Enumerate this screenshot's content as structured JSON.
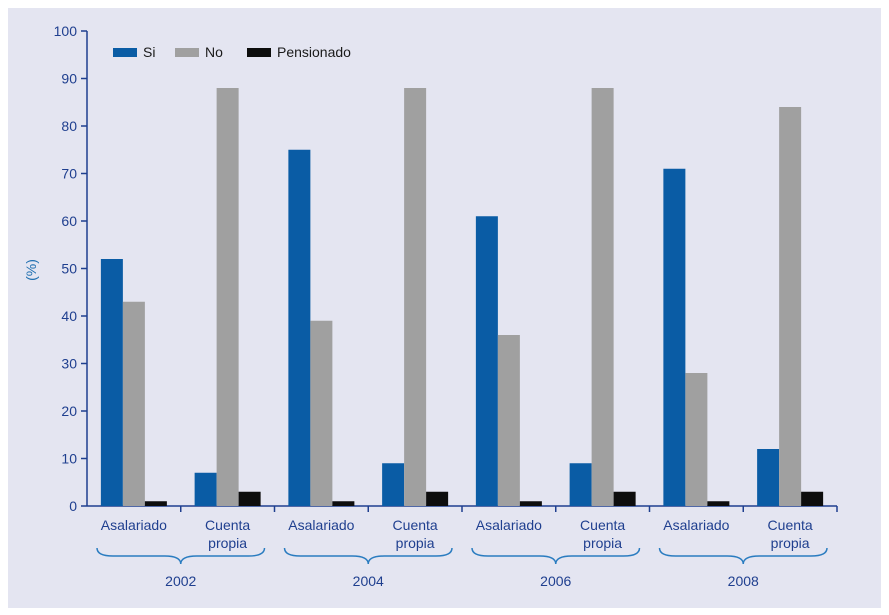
{
  "chart_data": {
    "type": "bar",
    "ylabel": "(%)",
    "ylim": [
      0,
      100
    ],
    "yticks": [
      0,
      10,
      20,
      30,
      40,
      50,
      60,
      70,
      80,
      90,
      100
    ],
    "grid": false,
    "legend_position": "top-left",
    "groups": [
      {
        "label": "2002",
        "categories": [
          {
            "label": "Asalariado"
          },
          {
            "label": "Cuenta propia",
            "lines": [
              "Cuenta",
              "propia"
            ]
          }
        ]
      },
      {
        "label": "2004",
        "categories": [
          {
            "label": "Asalariado"
          },
          {
            "label": "Cuenta propia",
            "lines": [
              "Cuenta",
              "propia"
            ]
          }
        ]
      },
      {
        "label": "2006",
        "categories": [
          {
            "label": "Asalariado"
          },
          {
            "label": "Cuenta propia",
            "lines": [
              "Cuenta",
              "propia"
            ]
          }
        ]
      },
      {
        "label": "2008",
        "categories": [
          {
            "label": "Asalariado"
          },
          {
            "label": "Cuenta propia",
            "lines": [
              "Cuenta",
              "propia"
            ]
          }
        ]
      }
    ],
    "categories": [
      "2002 Asalariado",
      "2002 Cuenta propia",
      "2004 Asalariado",
      "2004 Cuenta propia",
      "2006 Asalariado",
      "2006 Cuenta propia",
      "2008 Asalariado",
      "2008 Cuenta propia"
    ],
    "series": [
      {
        "name": "Si",
        "color": "#0a5ca5",
        "values": [
          52,
          7,
          75,
          9,
          61,
          9,
          71,
          12
        ]
      },
      {
        "name": "No",
        "color": "#a0a0a0",
        "values": [
          43,
          88,
          39,
          88,
          36,
          88,
          28,
          84
        ]
      },
      {
        "name": "Pensionado",
        "color": "#0d0d0d",
        "values": [
          1,
          3,
          1,
          3,
          1,
          3,
          1,
          3
        ]
      }
    ]
  }
}
